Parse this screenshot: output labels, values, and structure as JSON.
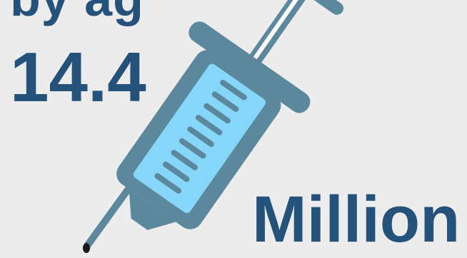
{
  "top_partial_text": "by ag",
  "value": "14.4",
  "unit": "Million",
  "icon": "syringe-icon",
  "colors": {
    "background": "#ececec",
    "text": "#24527b",
    "syringe_outline": "#5b889c",
    "syringe_fluid": "#85d6f8"
  }
}
